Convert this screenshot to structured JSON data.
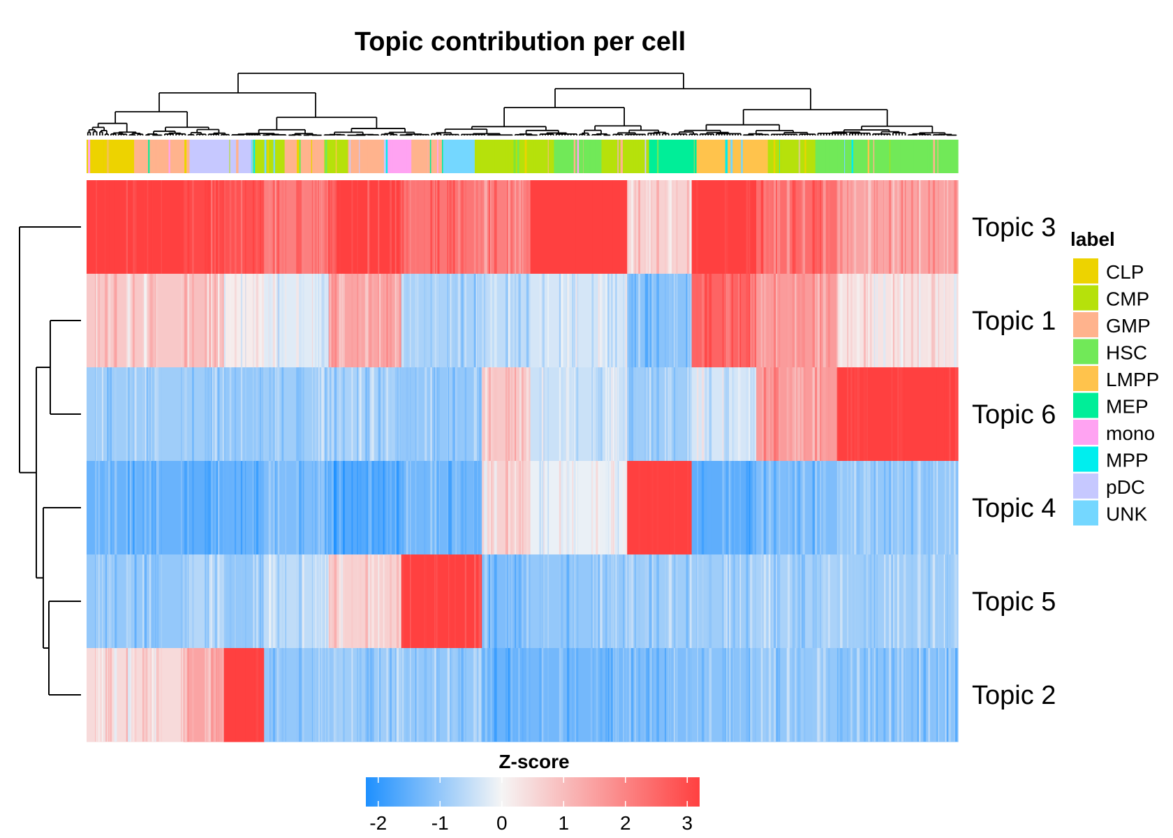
{
  "chart_data": {
    "type": "heatmap",
    "title": "Topic contribution per cell",
    "rows": [
      "Topic 3",
      "Topic 1",
      "Topic 6",
      "Topic 4",
      "Topic 5",
      "Topic 2"
    ],
    "column_annotation": {
      "title": "label",
      "legend": [
        {
          "name": "CLP",
          "color": "#EDD300"
        },
        {
          "name": "CMP",
          "color": "#B6E10B"
        },
        {
          "name": "GMP",
          "color": "#FFB38D"
        },
        {
          "name": "HSC",
          "color": "#71E958"
        },
        {
          "name": "LMPP",
          "color": "#FFC34C"
        },
        {
          "name": "MEP",
          "color": "#00EE98"
        },
        {
          "name": "mono",
          "color": "#FFA3F2"
        },
        {
          "name": "MPP",
          "color": "#00EEEE"
        },
        {
          "name": "pDC",
          "color": "#C6C8FF"
        },
        {
          "name": "UNK",
          "color": "#74D7FF"
        }
      ],
      "segments": [
        {
          "label": "CLP",
          "weight": 6
        },
        {
          "label": "GMP",
          "weight": 7
        },
        {
          "label": "pDC",
          "weight": 8
        },
        {
          "label": "CMP",
          "weight": 4
        },
        {
          "label": "GMP",
          "weight": 5
        },
        {
          "label": "CMP",
          "weight": 3
        },
        {
          "label": "GMP",
          "weight": 5
        },
        {
          "label": "mono",
          "weight": 3
        },
        {
          "label": "GMP",
          "weight": 4
        },
        {
          "label": "UNK",
          "weight": 4
        },
        {
          "label": "CMP",
          "weight": 10
        },
        {
          "label": "HSC",
          "weight": 6
        },
        {
          "label": "CMP",
          "weight": 6
        },
        {
          "label": "MEP",
          "weight": 6
        },
        {
          "label": "LMPP",
          "weight": 9
        },
        {
          "label": "CMP",
          "weight": 6
        },
        {
          "label": "HSC",
          "weight": 18
        }
      ]
    },
    "column_clusters": [
      {
        "weight": 12,
        "values": [
          2.2,
          0.5,
          -0.8,
          -1.3,
          -0.9,
          0.3
        ]
      },
      {
        "weight": 5,
        "values": [
          1.9,
          0.6,
          -0.8,
          -1.4,
          -0.6,
          0.9
        ]
      },
      {
        "weight": 5,
        "values": [
          1.8,
          0.1,
          -0.9,
          -1.3,
          -0.9,
          2.3
        ]
      },
      {
        "weight": 8,
        "values": [
          1.3,
          -0.2,
          -0.8,
          -1.1,
          -0.5,
          -0.9
        ]
      },
      {
        "weight": 9,
        "values": [
          2.0,
          0.9,
          -0.7,
          -1.5,
          0.4,
          -0.8
        ]
      },
      {
        "weight": 10,
        "values": [
          1.4,
          -0.7,
          -0.9,
          -1.2,
          2.1,
          -0.9
        ]
      },
      {
        "weight": 6,
        "values": [
          1.3,
          -0.5,
          0.5,
          0.4,
          -1.1,
          -1.3
        ]
      },
      {
        "weight": 12,
        "values": [
          2.6,
          -0.3,
          -0.4,
          -0.1,
          -0.9,
          -1.2
        ]
      },
      {
        "weight": 8,
        "values": [
          0.4,
          -1.0,
          -0.8,
          2.4,
          -0.8,
          -1.1
        ]
      },
      {
        "weight": 8,
        "values": [
          2.3,
          1.6,
          -0.3,
          -1.4,
          -0.8,
          -1.0
        ]
      },
      {
        "weight": 10,
        "values": [
          1.5,
          1.0,
          1.0,
          -1.1,
          -0.7,
          -0.9
        ]
      },
      {
        "weight": 15,
        "values": [
          0.9,
          0.2,
          2.3,
          -0.9,
          -0.8,
          -1.0
        ]
      }
    ],
    "color_scale": {
      "title": "Z-score",
      "ticks": [
        "-2",
        "-1",
        "0",
        "1",
        "2",
        "3"
      ],
      "range": [
        -2.2,
        3.2
      ],
      "low": "#1E90FF",
      "mid": "#F5F5F5",
      "high": "#FF4040"
    }
  }
}
